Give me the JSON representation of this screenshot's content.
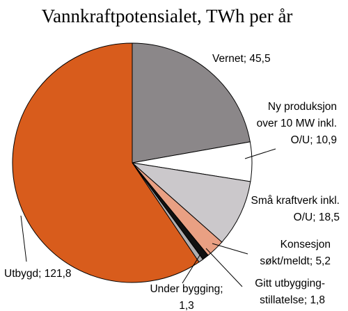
{
  "chart_data": {
    "type": "pie",
    "title": "Vannkraftpotensialet, TWh per år",
    "slices": [
      {
        "label_lines": [
          "Vernet; 45,5"
        ],
        "value": 45.5,
        "color": "#8b8789"
      },
      {
        "label_lines": [
          "Ny produksjon",
          "over 10 MW inkl.",
          "O/U; 10,9"
        ],
        "value": 10.9,
        "color": "#ffffff"
      },
      {
        "label_lines": [
          "Små kraftverk inkl.",
          "O/U; 18,5"
        ],
        "value": 18.5,
        "color": "#cbc8cb"
      },
      {
        "label_lines": [
          "Konsesjon",
          "søkt/meldt; 5,2"
        ],
        "value": 5.2,
        "color": "#e9a083"
      },
      {
        "label_lines": [
          "Gitt utbygging-",
          "stillatelse; 1,8"
        ],
        "value": 1.8,
        "color": "#111111"
      },
      {
        "label_lines": [
          "Under bygging;",
          "1,3"
        ],
        "value": 1.3,
        "color": "#b0aeb0"
      },
      {
        "label_lines": [
          "Utbygd; 121,8"
        ],
        "value": 121.8,
        "color": "#d85c1c"
      }
    ]
  }
}
